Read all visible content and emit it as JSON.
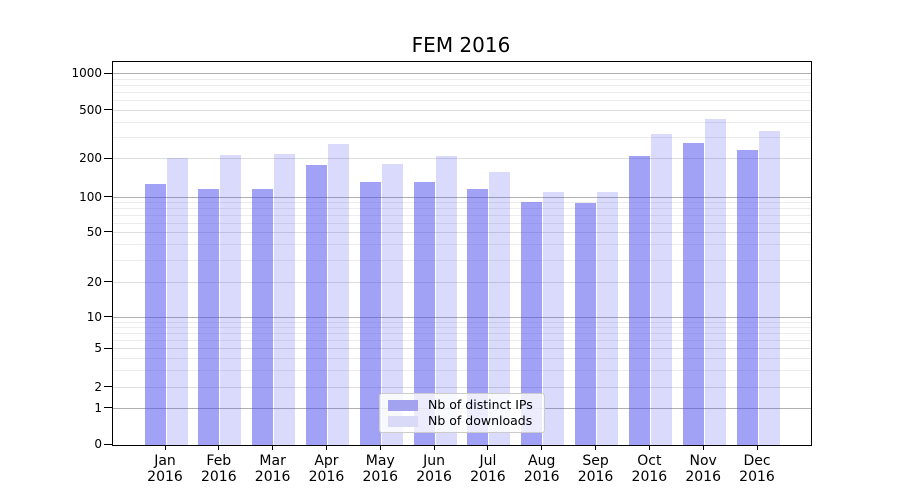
{
  "title": "FEM 2016",
  "chart_data": {
    "type": "bar",
    "title": "FEM 2016",
    "categories": [
      {
        "month": "Jan",
        "year": "2016"
      },
      {
        "month": "Feb",
        "year": "2016"
      },
      {
        "month": "Mar",
        "year": "2016"
      },
      {
        "month": "Apr",
        "year": "2016"
      },
      {
        "month": "May",
        "year": "2016"
      },
      {
        "month": "Jun",
        "year": "2016"
      },
      {
        "month": "Jul",
        "year": "2016"
      },
      {
        "month": "Aug",
        "year": "2016"
      },
      {
        "month": "Sep",
        "year": "2016"
      },
      {
        "month": "Oct",
        "year": "2016"
      },
      {
        "month": "Nov",
        "year": "2016"
      },
      {
        "month": "Dec",
        "year": "2016"
      }
    ],
    "series": [
      {
        "name": "Nb of distinct IPs",
        "fill": "rgba(68,68,238,0.5)",
        "legend_color": "#a2a2ef",
        "values": [
          127,
          116,
          116,
          180,
          132,
          133,
          118,
          92,
          90,
          212,
          274,
          237
        ]
      },
      {
        "name": "Nb of downloads",
        "fill": "rgba(68,68,238,0.2)",
        "legend_color": "#d9d9f8",
        "values": [
          206,
          217,
          220,
          269,
          185,
          214,
          159,
          111,
          111,
          323,
          432,
          342
        ]
      }
    ],
    "y_axis": {
      "scale": "symlog",
      "ticks": [
        0,
        1,
        2,
        5,
        10,
        20,
        50,
        100,
        200,
        500,
        1000
      ],
      "anchors": [
        [
          0,
          0
        ],
        [
          1,
          0.094
        ],
        [
          2,
          0.1501
        ],
        [
          5,
          0.2499
        ],
        [
          10,
          0.3316
        ],
        [
          20,
          0.4238
        ],
        [
          50,
          0.5543
        ],
        [
          100,
          0.6457
        ],
        [
          200,
          0.7459
        ],
        [
          500,
          0.8721
        ],
        [
          1000,
          0.9679
        ]
      ],
      "decade_gridlines": [
        1,
        10,
        100,
        1000
      ],
      "mid_gridlines": [
        2,
        5,
        20,
        50,
        200,
        500
      ],
      "minor_gridlines": [
        3,
        4,
        6,
        7,
        8,
        9,
        30,
        40,
        60,
        70,
        80,
        90,
        300,
        400,
        600,
        700,
        800,
        900
      ],
      "ylim": [
        0,
        1000
      ]
    },
    "legend_position": "bottom-center",
    "grid": true
  },
  "colors": {
    "major_grid": "#b0b0b0",
    "mid_grid": "#dedede",
    "minor_grid": "#ececec",
    "spine": "#000000",
    "text": "#000000"
  }
}
